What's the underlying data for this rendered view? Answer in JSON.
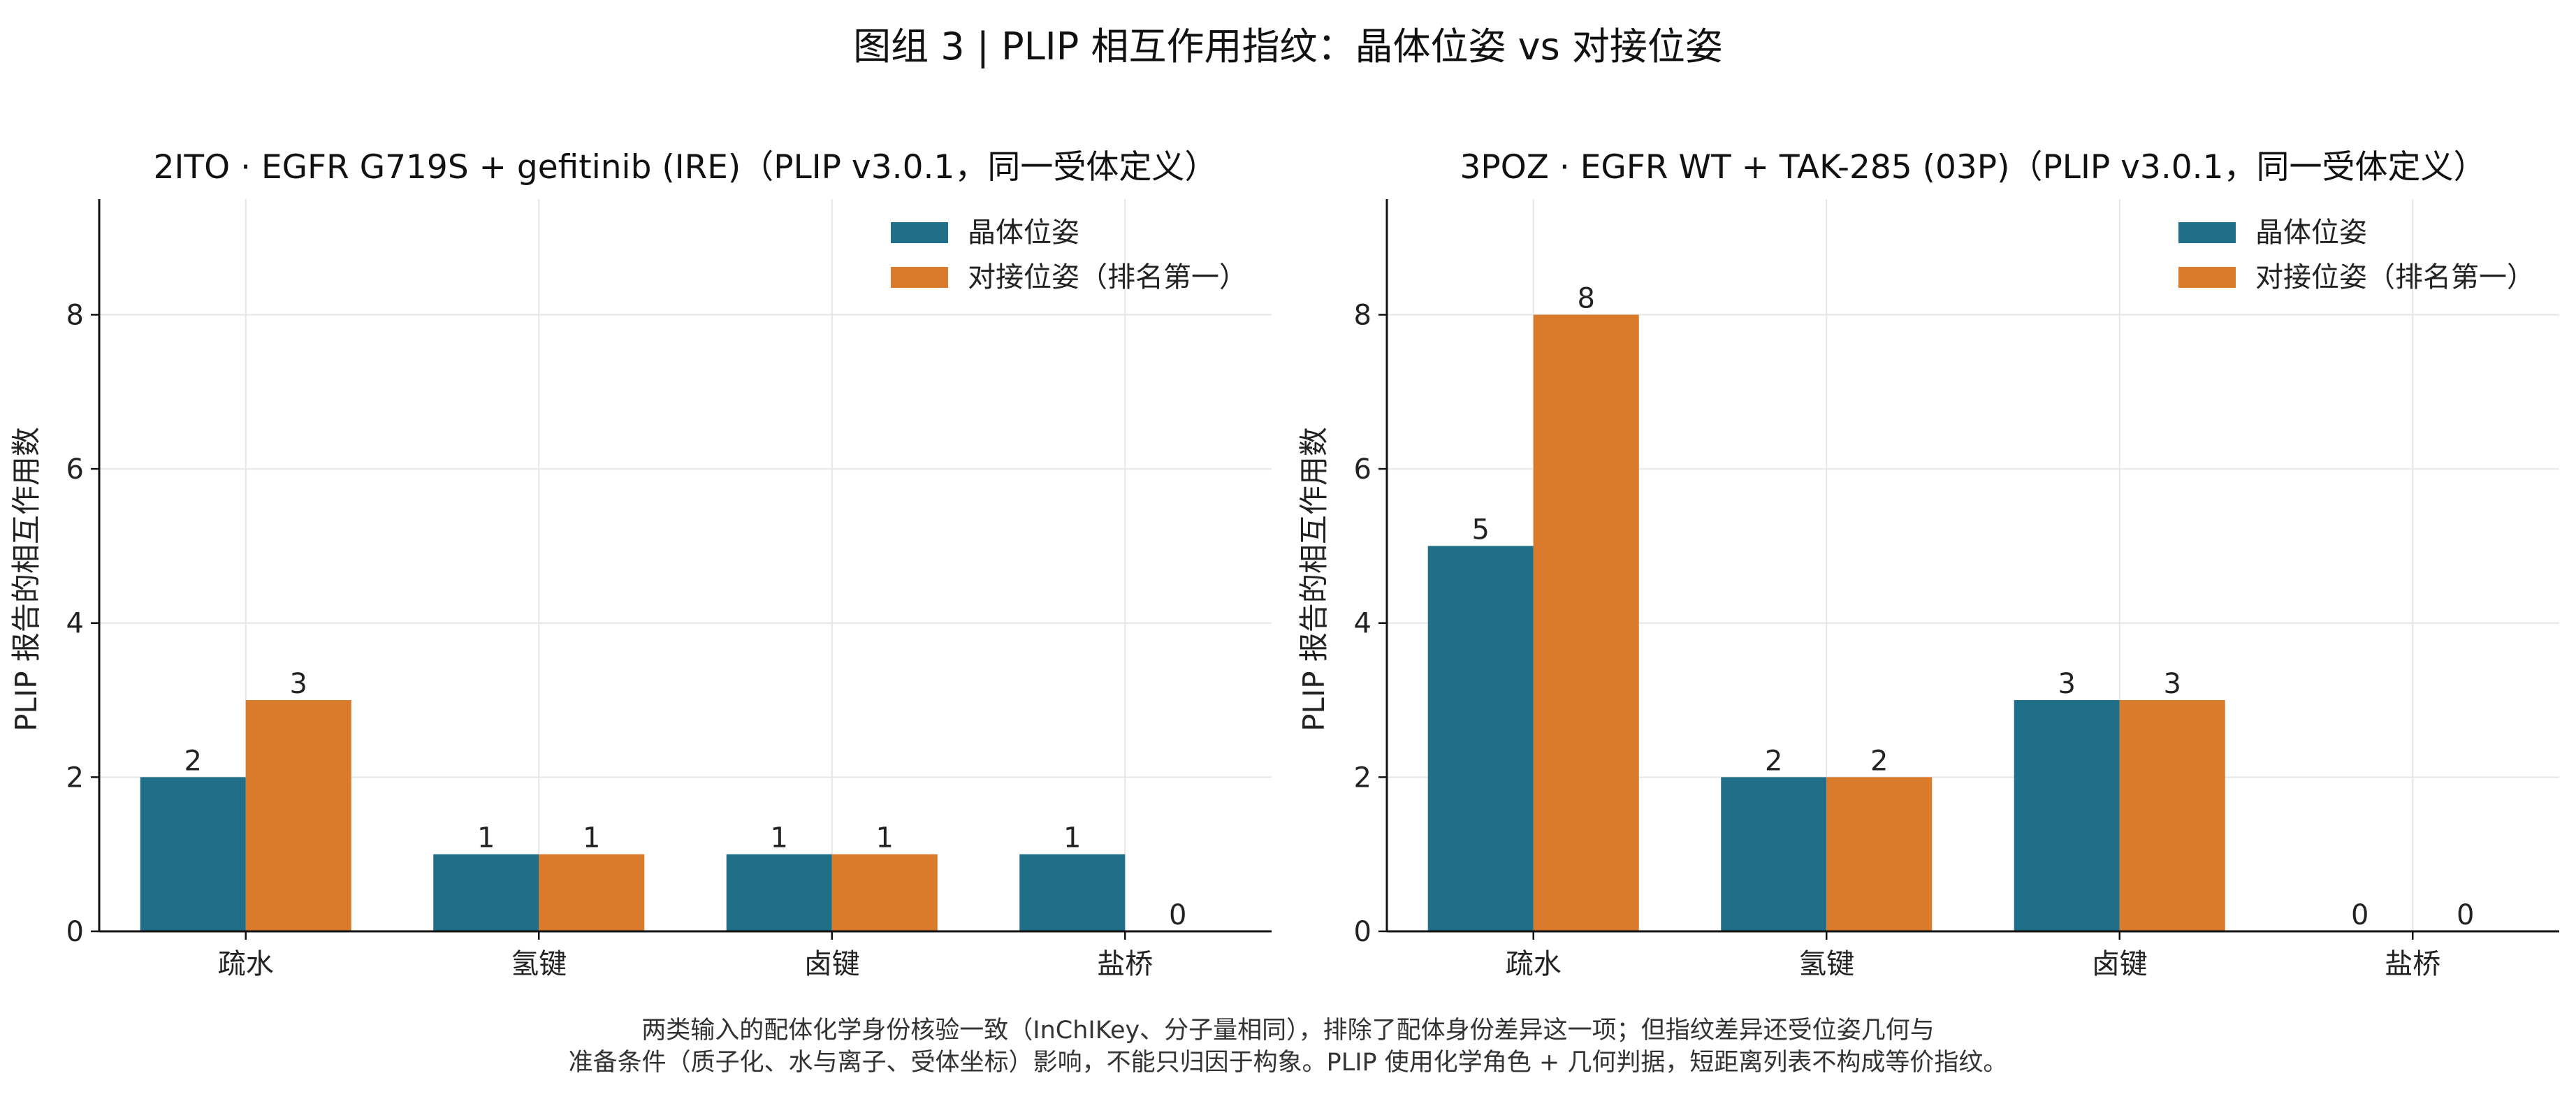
{
  "figure": {
    "title": "图组 3 | PLIP 相互作用指纹：晶体位姿 vs 对接位姿",
    "footnote_lines": [
      "两类输入的配体化学身份核验一致（InChIKey、分子量相同），排除了配体身份差异这一项；但指纹差异还受位姿几何与",
      "准备条件（质子化、水与离子、受体坐标）影响，不能只归因于构象。PLIP 使用化学角色 + 几何判据，短距离列表不构成等价指纹。"
    ]
  },
  "colors": {
    "crystal": "#1f6f88",
    "docking": "#d97b2b",
    "grid": "#e6e6e6",
    "axis": "#111111"
  },
  "chart_data": [
    {
      "type": "bar",
      "title": "2ITO · EGFR G719S + gefitinib (IRE)（PLIP v3.0.1，同一受体定义）",
      "categories": [
        "疏水",
        "氢键",
        "卤键",
        "盐桥"
      ],
      "series": [
        {
          "name": "晶体位姿",
          "values": [
            2,
            1,
            1,
            1
          ]
        },
        {
          "name": "对接位姿（排名第一）",
          "values": [
            3,
            1,
            1,
            0
          ]
        }
      ],
      "xlabel": "",
      "ylabel": "PLIP 报告的相互作用数",
      "ylim": [
        0,
        9.5
      ],
      "yticks": [
        0,
        2,
        4,
        6,
        8
      ],
      "grid": true,
      "legend": "top-right",
      "data_labels": true
    },
    {
      "type": "bar",
      "title": "3POZ · EGFR WT + TAK-285 (03P)（PLIP v3.0.1，同一受体定义）",
      "categories": [
        "疏水",
        "氢键",
        "卤键",
        "盐桥"
      ],
      "series": [
        {
          "name": "晶体位姿",
          "values": [
            5,
            2,
            3,
            0
          ]
        },
        {
          "name": "对接位姿（排名第一）",
          "values": [
            8,
            2,
            3,
            0
          ]
        }
      ],
      "xlabel": "",
      "ylabel": "PLIP 报告的相互作用数",
      "ylim": [
        0,
        9.5
      ],
      "yticks": [
        0,
        2,
        4,
        6,
        8
      ],
      "grid": true,
      "legend": "top-right",
      "data_labels": true
    }
  ]
}
